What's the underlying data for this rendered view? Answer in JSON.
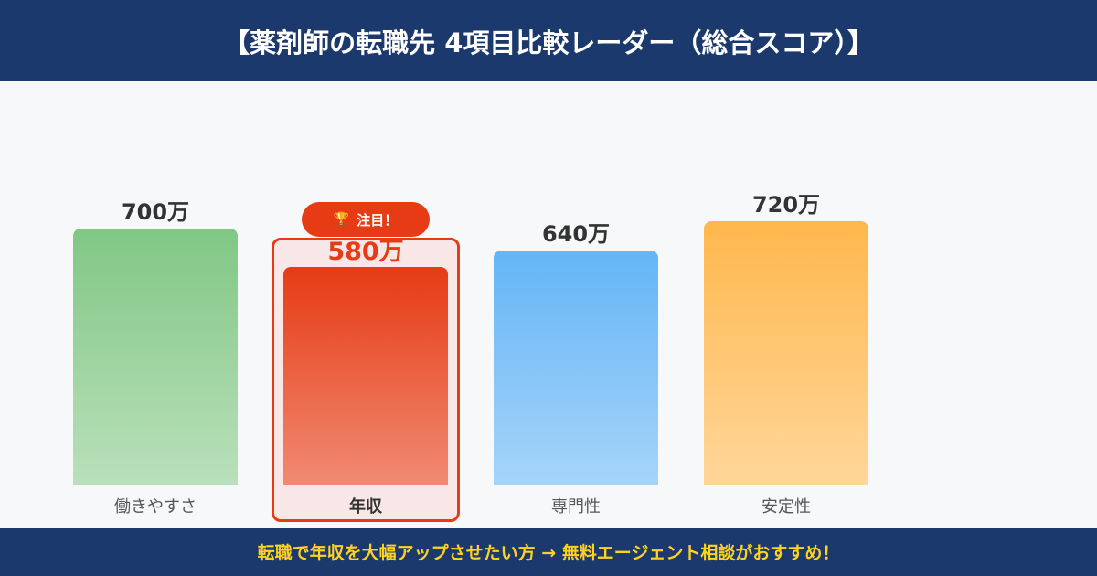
{
  "header": {
    "title": "【薬剤師の転職先 4項目比較レーダー（総合スコア）】"
  },
  "badge": {
    "icon": "trophy-icon",
    "glyph": "🏆",
    "label": "注目！"
  },
  "footer": {
    "text": "転職で年収を大幅アップさせたい方 → 無料エージェント相談がおすすめ！"
  },
  "colors": {
    "header_bg": "#1c396d",
    "footer_text": "#ffd21f",
    "highlight": "#e63b14",
    "highlight_bg": "#f8e7e6"
  },
  "chart_data": {
    "type": "bar",
    "title": "【薬剤師の転職先 4項目比較レーダー（総合スコア）】",
    "categories": [
      "働きやすさ",
      "年収",
      "専門性",
      "安定性"
    ],
    "values": [
      700,
      580,
      640,
      720
    ],
    "value_labels": [
      "700万",
      "580万",
      "640万",
      "720万"
    ],
    "unit": "万",
    "highlighted_category": "年収",
    "annotation": "注目！",
    "bar_colors": [
      [
        "#81c784",
        "#b9e0bb"
      ],
      [
        "#e63b14",
        "#f08a72"
      ],
      [
        "#64b5f6",
        "#a6d4f9"
      ],
      [
        "#ffb74d",
        "#ffd699"
      ]
    ],
    "xlabel": "",
    "ylabel": "",
    "grid": false,
    "legend": "none"
  }
}
